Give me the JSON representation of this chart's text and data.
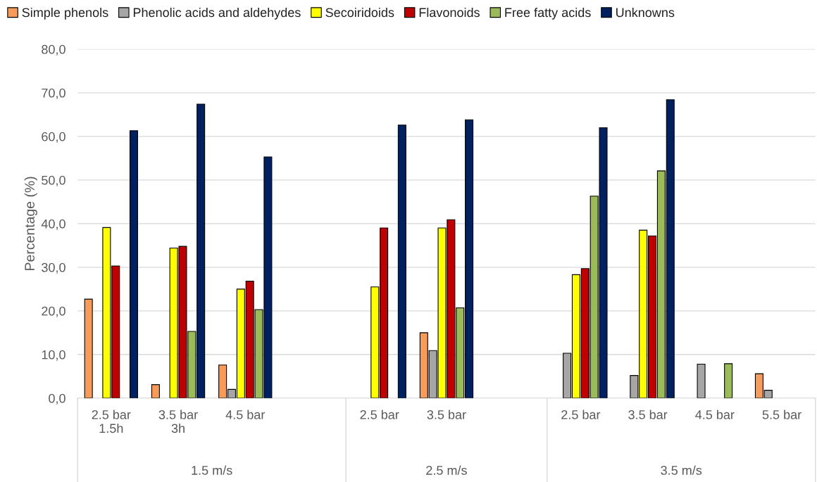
{
  "chart_data": {
    "type": "bar",
    "ylabel": "Percentage (%)",
    "categories": [
      "2.5 bar\n1.5h",
      "3.5 bar\n3h",
      "4.5 bar",
      null,
      "2.5 bar",
      "3.5 bar",
      null,
      "2.5 bar",
      "3.5 bar",
      "4.5 bar",
      "5.5 bar"
    ],
    "annotations": [
      "1.5 m/s",
      "2.5 m/s",
      "3.5 m/s"
    ],
    "series": [
      {
        "name": "Simple phenols",
        "color": "#f79b5a",
        "values": [
          22.7,
          3.1,
          7.6,
          null,
          null,
          15.0,
          null,
          null,
          null,
          null,
          5.6
        ]
      },
      {
        "name": "Phenolic acids and aldehydes",
        "color": "#a6a6a6",
        "values": [
          null,
          null,
          2.0,
          null,
          null,
          10.9,
          null,
          10.3,
          5.2,
          7.8,
          1.8
        ]
      },
      {
        "name": "Secoiridoids",
        "color": "#ffff00",
        "values": [
          39.1,
          34.4,
          25.0,
          null,
          25.5,
          39.0,
          null,
          28.3,
          38.5,
          null,
          null
        ]
      },
      {
        "name": "Flavonoids",
        "color": "#c00000",
        "values": [
          30.3,
          34.8,
          26.8,
          null,
          39.0,
          40.9,
          null,
          29.7,
          37.2,
          null,
          null
        ]
      },
      {
        "name": "Free fatty acids",
        "color": "#9bbb59",
        "values": [
          null,
          15.3,
          20.3,
          null,
          null,
          20.7,
          null,
          46.3,
          52.1,
          7.9,
          null
        ]
      },
      {
        "name": "Unknowns",
        "color": "#002060",
        "values": [
          61.3,
          67.4,
          55.3,
          null,
          62.6,
          63.8,
          null,
          62.0,
          68.4,
          null,
          null
        ]
      }
    ],
    "ylim": [
      0,
      80
    ],
    "yticks": [
      {
        "value": 0,
        "label": "0,0"
      },
      {
        "value": 10,
        "label": "10,0"
      },
      {
        "value": 20,
        "label": "20,0"
      },
      {
        "value": 30,
        "label": "30,0"
      },
      {
        "value": 40,
        "label": "40,0"
      },
      {
        "value": 50,
        "label": "50,0"
      },
      {
        "value": 60,
        "label": "60,0"
      },
      {
        "value": 70,
        "label": "70,0"
      },
      {
        "value": 80,
        "label": "80,0"
      }
    ],
    "grid": "y",
    "legend": "top"
  }
}
